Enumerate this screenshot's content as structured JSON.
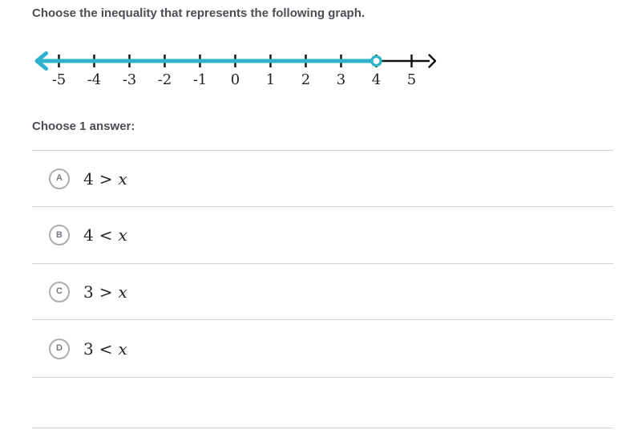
{
  "question": {
    "prompt": "Choose the inequality that represents the following graph."
  },
  "number_line": {
    "min": -5,
    "max": 5,
    "tick_values": [
      -5,
      -4,
      -3,
      -2,
      -1,
      0,
      1,
      2,
      3,
      4,
      5
    ],
    "tick_labels": [
      "-5",
      "-4",
      "-3",
      "-2",
      "-1",
      "0",
      "1",
      "2",
      "3",
      "4",
      "5"
    ],
    "open_point": 4,
    "shaded_ray_direction": "left",
    "ray_color": "#2eb3cb",
    "axis_color": "#111111",
    "label_color": "#1f2227",
    "point_fill": "#ffffff"
  },
  "choose_prompt": "Choose 1 answer:",
  "answers": [
    {
      "letter": "A",
      "lhs": "4",
      "op": ">",
      "var": "x"
    },
    {
      "letter": "B",
      "lhs": "4",
      "op": "<",
      "var": "x"
    },
    {
      "letter": "C",
      "lhs": "3",
      "op": ">",
      "var": "x"
    },
    {
      "letter": "D",
      "lhs": "3",
      "op": "<",
      "var": "x"
    }
  ],
  "colors": {
    "text": "#4a4e54",
    "divider": "#cfd1d3",
    "radio_border": "#abaeb3",
    "math_text": "#22252a"
  }
}
